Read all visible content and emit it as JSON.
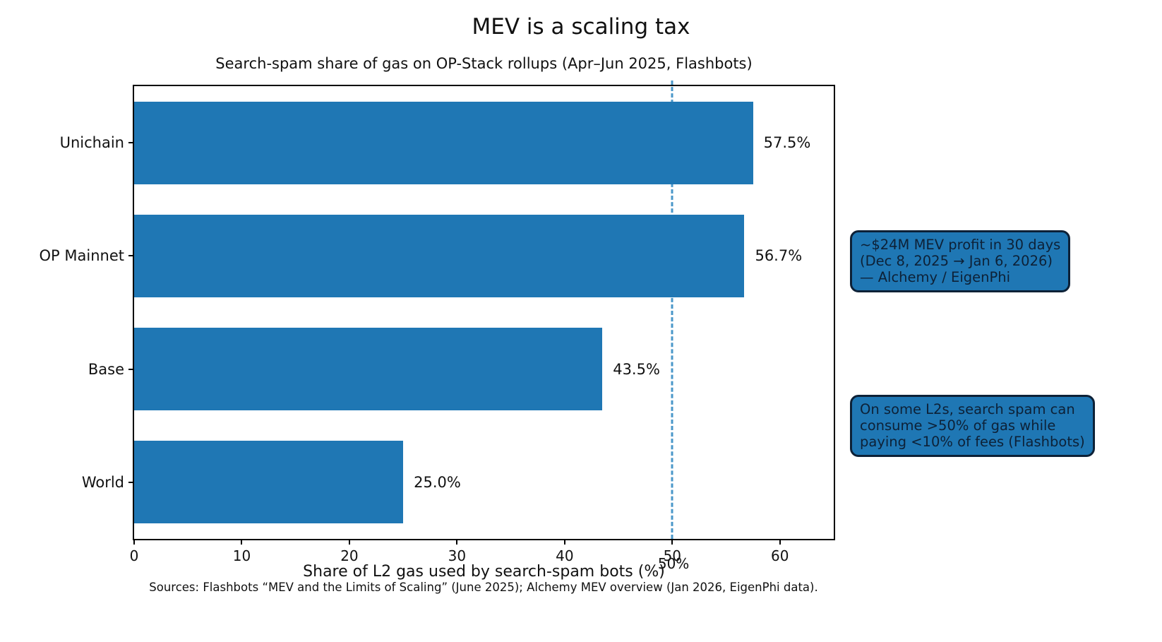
{
  "figure": {
    "title": "MEV is a scaling tax",
    "subtitle": "Search-spam share of gas on OP-Stack rollups (Apr–Jun 2025, Flashbots)",
    "xlabel": "Share of L2 gas used by search-spam bots (%)",
    "source": "Sources: Flashbots “MEV and the Limits of Scaling” (June 2025); Alchemy MEV overview (Jan 2026, EigenPhi data)."
  },
  "chart_data": {
    "type": "bar",
    "orientation": "horizontal",
    "title": "MEV is a scaling tax",
    "subtitle": "Search-spam share of gas on OP-Stack rollups (Apr–Jun 2025, Flashbots)",
    "xlabel": "Share of L2 gas used by search-spam bots (%)",
    "categories": [
      "Unichain",
      "OP Mainnet",
      "Base",
      "World"
    ],
    "values": [
      57.5,
      56.7,
      43.5,
      25.0
    ],
    "value_labels": [
      "57.5%",
      "56.7%",
      "43.5%",
      "25.0%"
    ],
    "xlim": [
      0,
      65
    ],
    "xticks": [
      0,
      10,
      20,
      30,
      40,
      50,
      60
    ],
    "grid": false,
    "legend": null,
    "bar_color": "#1f77b4",
    "reference_line": {
      "x": 50,
      "label": "50%",
      "style": "dashed",
      "color": "#4a97c9"
    }
  },
  "annotations": {
    "mev_profit": {
      "text": "~$24M MEV profit in 30 days\n(Dec 8, 2025 → Jan 6, 2026)\n— Alchemy / EigenPhi"
    },
    "search_spam": {
      "text": "On some L2s, search spam can\nconsume >50% of gas while\npaying <10% of fees (Flashbots)"
    }
  },
  "colors": {
    "bar": "#1f77b4",
    "reference_line": "#4a97c9",
    "callout_fill": "#1f77b4",
    "callout_border": "#0d2137",
    "callout_text": "#0d2137",
    "text": "#111111"
  }
}
